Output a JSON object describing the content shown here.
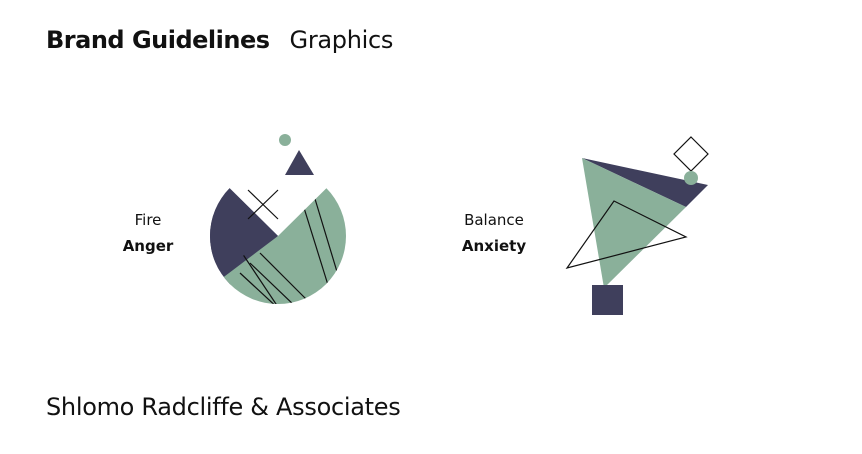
{
  "header": {
    "title": "Brand Guidelines",
    "section": "Graphics"
  },
  "graphics": [
    {
      "primary_label": "Fire",
      "secondary_label": "Anger"
    },
    {
      "primary_label": "Balance",
      "secondary_label": "Anxiety"
    }
  ],
  "footer": {
    "company": "Shlomo Radcliffe & Associates"
  },
  "colors": {
    "navy": "#3f3f5c",
    "sage": "#8ab09a",
    "line": "#111111"
  }
}
